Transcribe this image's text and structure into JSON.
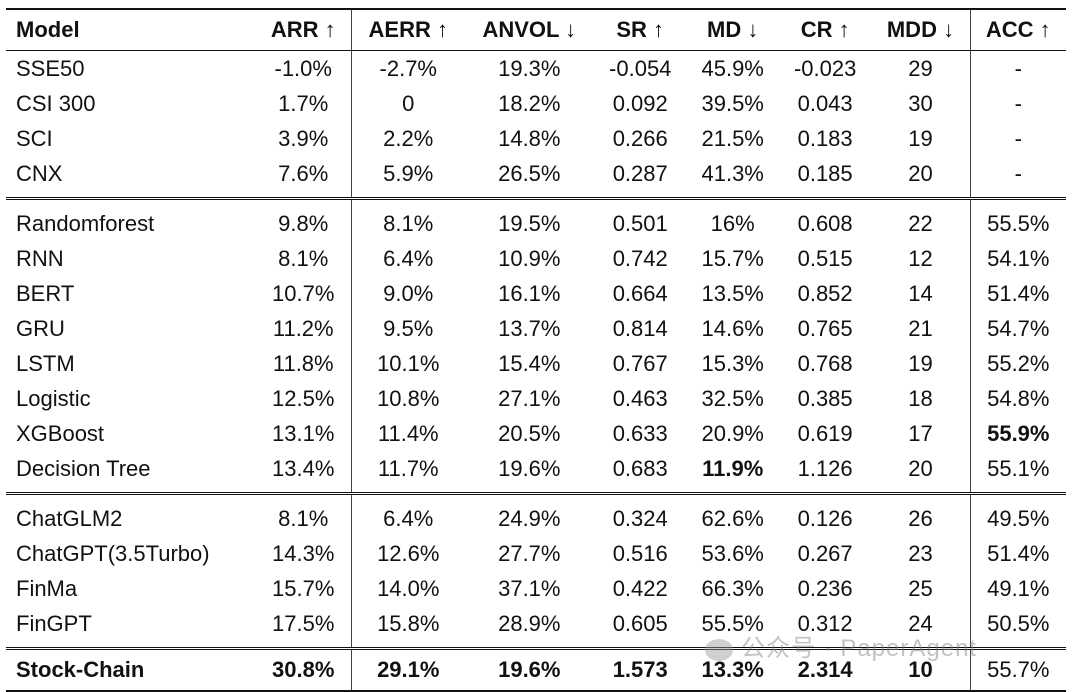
{
  "columns": [
    "Model",
    "ARR ↑",
    "AERR ↑",
    "ANVOL ↓",
    "SR ↑",
    "MD ↓",
    "CR ↑",
    "MDD ↓",
    "ACC ↑"
  ],
  "groups": [
    [
      [
        "SSE50",
        "-1.0%",
        "-2.7%",
        "19.3%",
        "-0.054",
        "45.9%",
        "-0.023",
        "29",
        "-"
      ],
      [
        "CSI 300",
        "1.7%",
        "0",
        "18.2%",
        "0.092",
        "39.5%",
        "0.043",
        "30",
        "-"
      ],
      [
        "SCI",
        "3.9%",
        "2.2%",
        "14.8%",
        "0.266",
        "21.5%",
        "0.183",
        "19",
        "-"
      ],
      [
        "CNX",
        "7.6%",
        "5.9%",
        "26.5%",
        "0.287",
        "41.3%",
        "0.185",
        "20",
        "-"
      ]
    ],
    [
      [
        "Randomforest",
        "9.8%",
        "8.1%",
        "19.5%",
        "0.501",
        "16%",
        "0.608",
        "22",
        "55.5%"
      ],
      [
        "RNN",
        "8.1%",
        "6.4%",
        "10.9%",
        "0.742",
        "15.7%",
        "0.515",
        "12",
        "54.1%"
      ],
      [
        "BERT",
        "10.7%",
        "9.0%",
        "16.1%",
        "0.664",
        "13.5%",
        "0.852",
        "14",
        "51.4%"
      ],
      [
        "GRU",
        "11.2%",
        "9.5%",
        "13.7%",
        "0.814",
        "14.6%",
        "0.765",
        "21",
        "54.7%"
      ],
      [
        "LSTM",
        "11.8%",
        "10.1%",
        "15.4%",
        "0.767",
        "15.3%",
        "0.768",
        "19",
        "55.2%"
      ],
      [
        "Logistic",
        "12.5%",
        "10.8%",
        "27.1%",
        "0.463",
        "32.5%",
        "0.385",
        "18",
        "54.8%"
      ],
      [
        "XGBoost",
        "13.1%",
        "11.4%",
        "20.5%",
        "0.633",
        "20.9%",
        "0.619",
        "17",
        "55.9%"
      ],
      [
        "Decision Tree",
        "13.4%",
        "11.7%",
        "19.6%",
        "0.683",
        "11.9%",
        "1.126",
        "20",
        "55.1%"
      ]
    ],
    [
      [
        "ChatGLM2",
        "8.1%",
        "6.4%",
        "24.9%",
        "0.324",
        "62.6%",
        "0.126",
        "26",
        "49.5%"
      ],
      [
        "ChatGPT(3.5Turbo)",
        "14.3%",
        "12.6%",
        "27.7%",
        "0.516",
        "53.6%",
        "0.267",
        "23",
        "51.4%"
      ],
      [
        "FinMa",
        "15.7%",
        "14.0%",
        "37.1%",
        "0.422",
        "66.3%",
        "0.236",
        "25",
        "49.1%"
      ],
      [
        "FinGPT",
        "17.5%",
        "15.8%",
        "28.9%",
        "0.605",
        "55.5%",
        "0.312",
        "24",
        "50.5%"
      ]
    ]
  ],
  "final_row": [
    "Stock-Chain",
    "30.8%",
    "29.1%",
    "19.6%",
    "1.573",
    "13.3%",
    "2.314",
    "10",
    "55.7%"
  ],
  "watermark": "公众号 · PaperAgent"
}
